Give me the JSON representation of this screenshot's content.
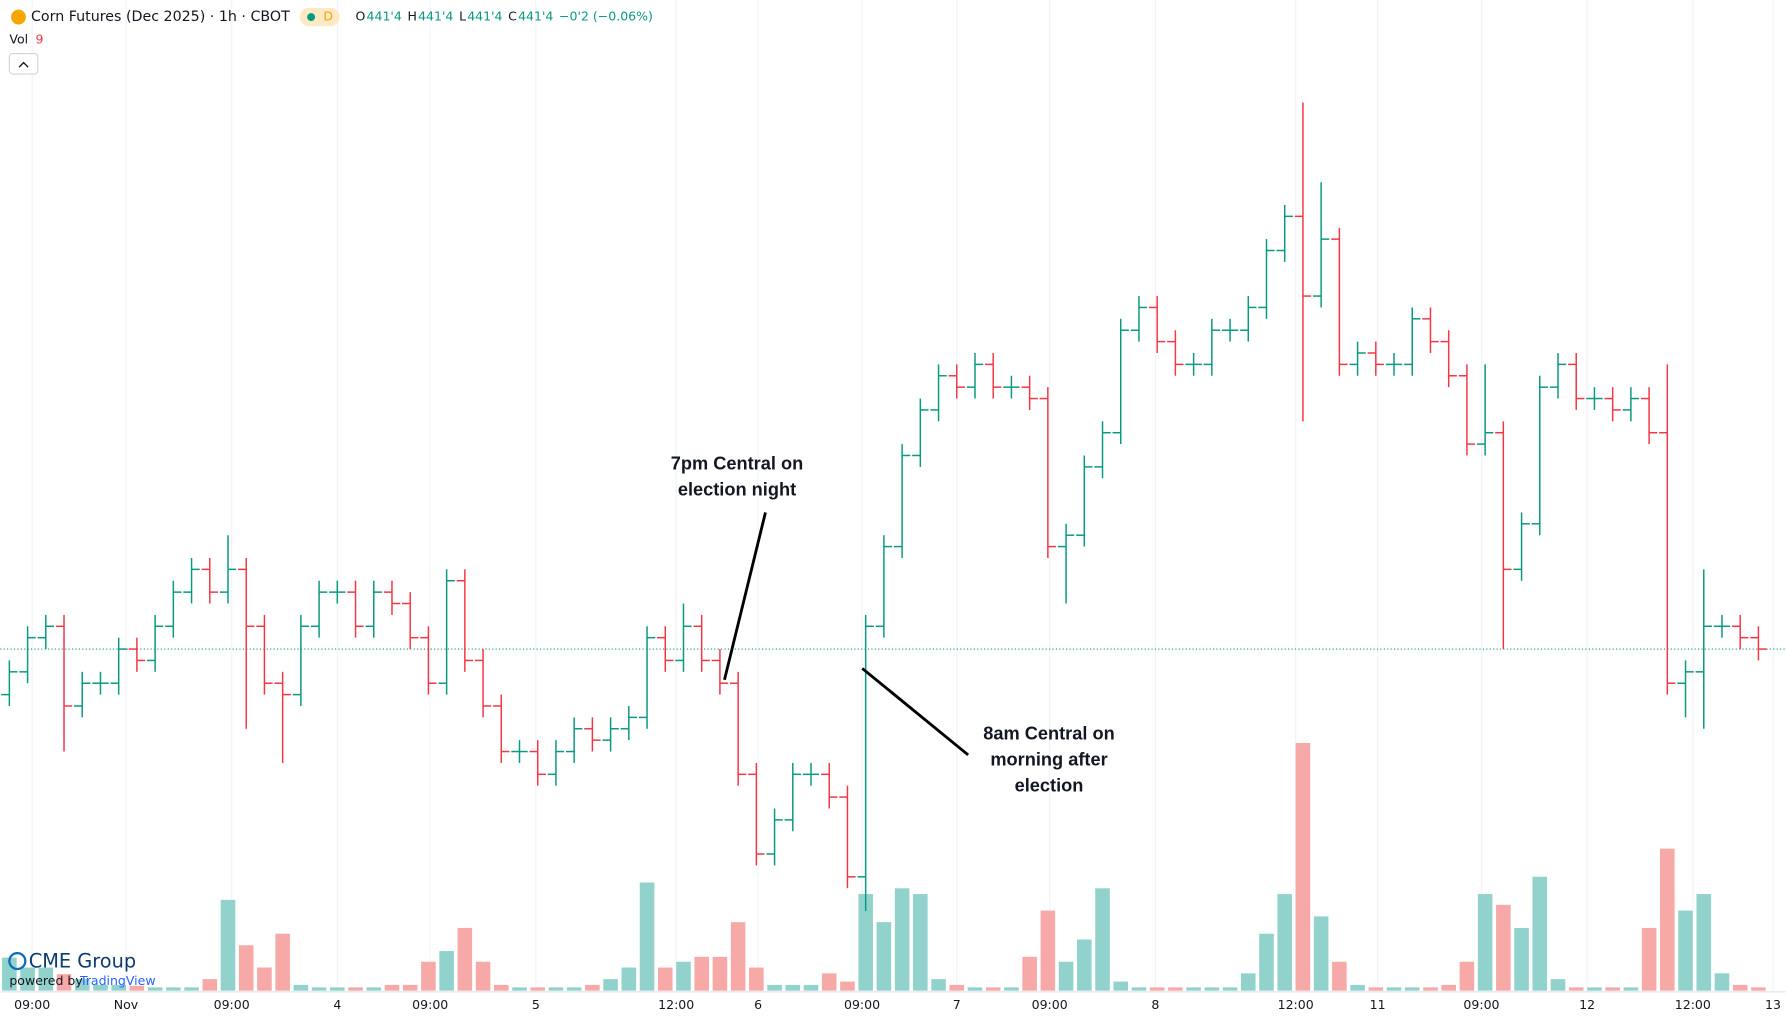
{
  "chart_data": {
    "type": "ohlc",
    "title": "Corn Futures (Dec 2025) · 1h · CBOT",
    "badge": "D",
    "legend": [
      {
        "label": "O",
        "value": "441'4"
      },
      {
        "label": "H",
        "value": "441'4"
      },
      {
        "label": "L",
        "value": "441'4"
      },
      {
        "label": "C",
        "value": "441'4"
      }
    ],
    "change": "−0'2 (−0.06%)",
    "volume_label": "Vol",
    "volume_value": "9",
    "annotations": [
      "7pm Central on",
      "election night",
      "8am Central on",
      "morning after",
      "election"
    ],
    "logo": "CME Group",
    "powered_by": "powered by",
    "powered_brand": "TradingView",
    "up_color": "#089981",
    "down_color": "#f23645",
    "up_volume_color": "#92d2cc",
    "down_volume_color": "#f7a9a7",
    "grid": true,
    "ylim": [
      434,
      455.75
    ],
    "vlim": [
      0,
      4000
    ],
    "xlim": [
      -0.5,
      97.5
    ],
    "xticks": [
      {
        "value": 1.25,
        "label": "09:00"
      },
      {
        "value": 6.4,
        "label": "Nov"
      },
      {
        "value": 12.2,
        "label": "09:00"
      },
      {
        "value": 18,
        "label": "4"
      },
      {
        "value": 23.1,
        "label": "09:00"
      },
      {
        "value": 28.9,
        "label": "5"
      },
      {
        "value": 36.6,
        "label": "12:00"
      },
      {
        "value": 41.1,
        "label": "6"
      },
      {
        "value": 46.8,
        "label": "09:00"
      },
      {
        "value": 52,
        "label": "7"
      },
      {
        "value": 57.1,
        "label": "09:00"
      },
      {
        "value": 62.9,
        "label": "8"
      },
      {
        "value": 70.6,
        "label": "12:00"
      },
      {
        "value": 75.1,
        "label": "11"
      },
      {
        "value": 80.8,
        "label": "09:00"
      },
      {
        "value": 86.6,
        "label": "12"
      },
      {
        "value": 92.4,
        "label": "12:00"
      },
      {
        "value": 96.8,
        "label": "13"
      }
    ],
    "open": [
      440.5,
      441.0,
      441.75,
      442.0,
      440.25,
      440.75,
      440.75,
      441.5,
      441.25,
      442.0,
      442.75,
      443.25,
      442.75,
      443.25,
      442.0,
      440.75,
      440.5,
      442.0,
      442.75,
      442.75,
      442.0,
      442.75,
      442.5,
      441.75,
      440.75,
      443.0,
      441.25,
      440.25,
      439.25,
      439.25,
      438.75,
      439.25,
      439.75,
      439.5,
      439.75,
      440.0,
      441.75,
      441.25,
      442.0,
      441.25,
      440.75,
      438.75,
      437.0,
      437.75,
      438.75,
      438.75,
      438.25,
      436.5,
      442.0,
      443.75,
      445.75,
      446.75,
      447.5,
      447.25,
      447.75,
      447.25,
      447.25,
      447.0,
      443.75,
      444.0,
      445.5,
      446.25,
      448.5,
      449.0,
      448.25,
      447.75,
      447.75,
      448.5,
      448.5,
      449.0,
      450.25,
      451.0,
      449.25,
      450.5,
      447.75,
      448.0,
      447.75,
      447.75,
      448.75,
      448.25,
      447.5,
      446.0,
      446.25,
      443.25,
      444.25,
      447.25,
      447.75,
      447.0,
      447.0,
      446.75,
      447.0,
      446.25,
      440.75,
      441.0,
      442.0,
      442.0,
      441.75
    ],
    "high": [
      441.25,
      442.0,
      442.25,
      442.25,
      441.0,
      441.0,
      441.75,
      441.75,
      442.25,
      443.0,
      443.5,
      443.5,
      444.0,
      443.5,
      442.25,
      441.0,
      442.25,
      443.0,
      443.0,
      443.0,
      443.0,
      443.0,
      442.75,
      442.0,
      443.25,
      443.25,
      441.5,
      440.5,
      439.5,
      439.5,
      439.5,
      440.0,
      440.0,
      440.0,
      440.25,
      442.0,
      442.0,
      442.5,
      442.25,
      441.5,
      441.0,
      439.0,
      438.0,
      439.0,
      439.0,
      439.0,
      438.5,
      442.25,
      444.0,
      446.0,
      447.0,
      447.75,
      447.75,
      448.0,
      448.0,
      447.5,
      447.5,
      447.25,
      444.25,
      445.75,
      446.5,
      448.75,
      449.25,
      449.25,
      448.5,
      448.0,
      448.75,
      448.75,
      449.25,
      450.5,
      451.25,
      453.5,
      451.75,
      450.75,
      448.25,
      448.25,
      448.0,
      449.0,
      449.0,
      448.5,
      447.75,
      447.75,
      446.5,
      444.5,
      447.5,
      448.0,
      448.0,
      447.25,
      447.25,
      447.25,
      447.25,
      447.75,
      441.25,
      443.25,
      442.25,
      442.25,
      442.0
    ],
    "low": [
      440.25,
      440.75,
      441.5,
      439.25,
      440.0,
      440.5,
      440.5,
      441.0,
      441.0,
      441.75,
      442.5,
      442.5,
      442.5,
      439.75,
      440.5,
      439.0,
      440.25,
      441.75,
      442.5,
      441.75,
      441.75,
      442.25,
      441.5,
      440.5,
      440.5,
      441.0,
      440.0,
      439.0,
      439.0,
      438.5,
      438.5,
      439.0,
      439.25,
      439.25,
      439.5,
      439.75,
      441.0,
      441.0,
      441.0,
      440.5,
      438.5,
      436.75,
      436.75,
      437.5,
      438.5,
      438.0,
      436.25,
      435.75,
      441.75,
      443.5,
      445.5,
      446.5,
      447.0,
      447.0,
      447.0,
      447.0,
      446.75,
      443.5,
      442.5,
      443.75,
      445.25,
      446.0,
      448.25,
      448.0,
      447.5,
      447.5,
      447.5,
      448.25,
      448.25,
      448.75,
      450.0,
      446.5,
      449.0,
      447.5,
      447.5,
      447.5,
      447.5,
      447.5,
      448.0,
      447.25,
      445.75,
      445.75,
      441.5,
      443.0,
      444.0,
      447.0,
      446.75,
      446.75,
      446.5,
      446.5,
      446.0,
      440.5,
      440.0,
      439.75,
      441.75,
      441.5,
      441.25
    ],
    "close": [
      441.0,
      441.75,
      442.0,
      440.25,
      440.75,
      440.75,
      441.5,
      441.25,
      442.0,
      442.75,
      443.25,
      442.75,
      443.25,
      442.0,
      440.75,
      440.5,
      442.0,
      442.75,
      442.75,
      442.0,
      442.75,
      442.5,
      441.75,
      440.75,
      443.0,
      441.25,
      440.25,
      439.25,
      439.25,
      438.75,
      439.25,
      439.75,
      439.5,
      439.75,
      440.0,
      441.75,
      441.25,
      442.0,
      441.25,
      440.75,
      438.75,
      437.0,
      437.75,
      438.75,
      438.75,
      438.25,
      436.5,
      442.0,
      443.75,
      445.75,
      446.75,
      447.5,
      447.25,
      447.75,
      447.25,
      447.25,
      447.0,
      443.75,
      444.0,
      445.5,
      446.25,
      448.5,
      449.0,
      448.25,
      447.75,
      447.75,
      448.5,
      448.5,
      449.0,
      450.25,
      451.0,
      449.25,
      450.5,
      447.75,
      448.0,
      447.75,
      447.75,
      448.75,
      448.25,
      447.5,
      446.0,
      446.25,
      443.25,
      444.25,
      447.25,
      447.75,
      447.0,
      447.0,
      446.75,
      447.0,
      446.25,
      440.75,
      441.0,
      442.0,
      442.0,
      441.75,
      441.5
    ],
    "volume": [
      400,
      280,
      280,
      200,
      140,
      70,
      70,
      60,
      40,
      40,
      40,
      140,
      1100,
      550,
      280,
      690,
      70,
      40,
      40,
      40,
      40,
      70,
      70,
      350,
      480,
      760,
      350,
      70,
      40,
      40,
      40,
      40,
      70,
      140,
      280,
      1310,
      280,
      350,
      410,
      410,
      830,
      280,
      70,
      70,
      70,
      210,
      110,
      1170,
      830,
      1240,
      1170,
      140,
      70,
      40,
      40,
      40,
      410,
      970,
      350,
      620,
      1240,
      110,
      40,
      40,
      40,
      40,
      40,
      40,
      210,
      690,
      1170,
      3000,
      900,
      350,
      70,
      40,
      40,
      40,
      40,
      70,
      350,
      1170,
      1040,
      760,
      1380,
      140,
      40,
      40,
      40,
      40,
      760,
      1720,
      970,
      1170,
      210,
      70,
      40
    ]
  }
}
